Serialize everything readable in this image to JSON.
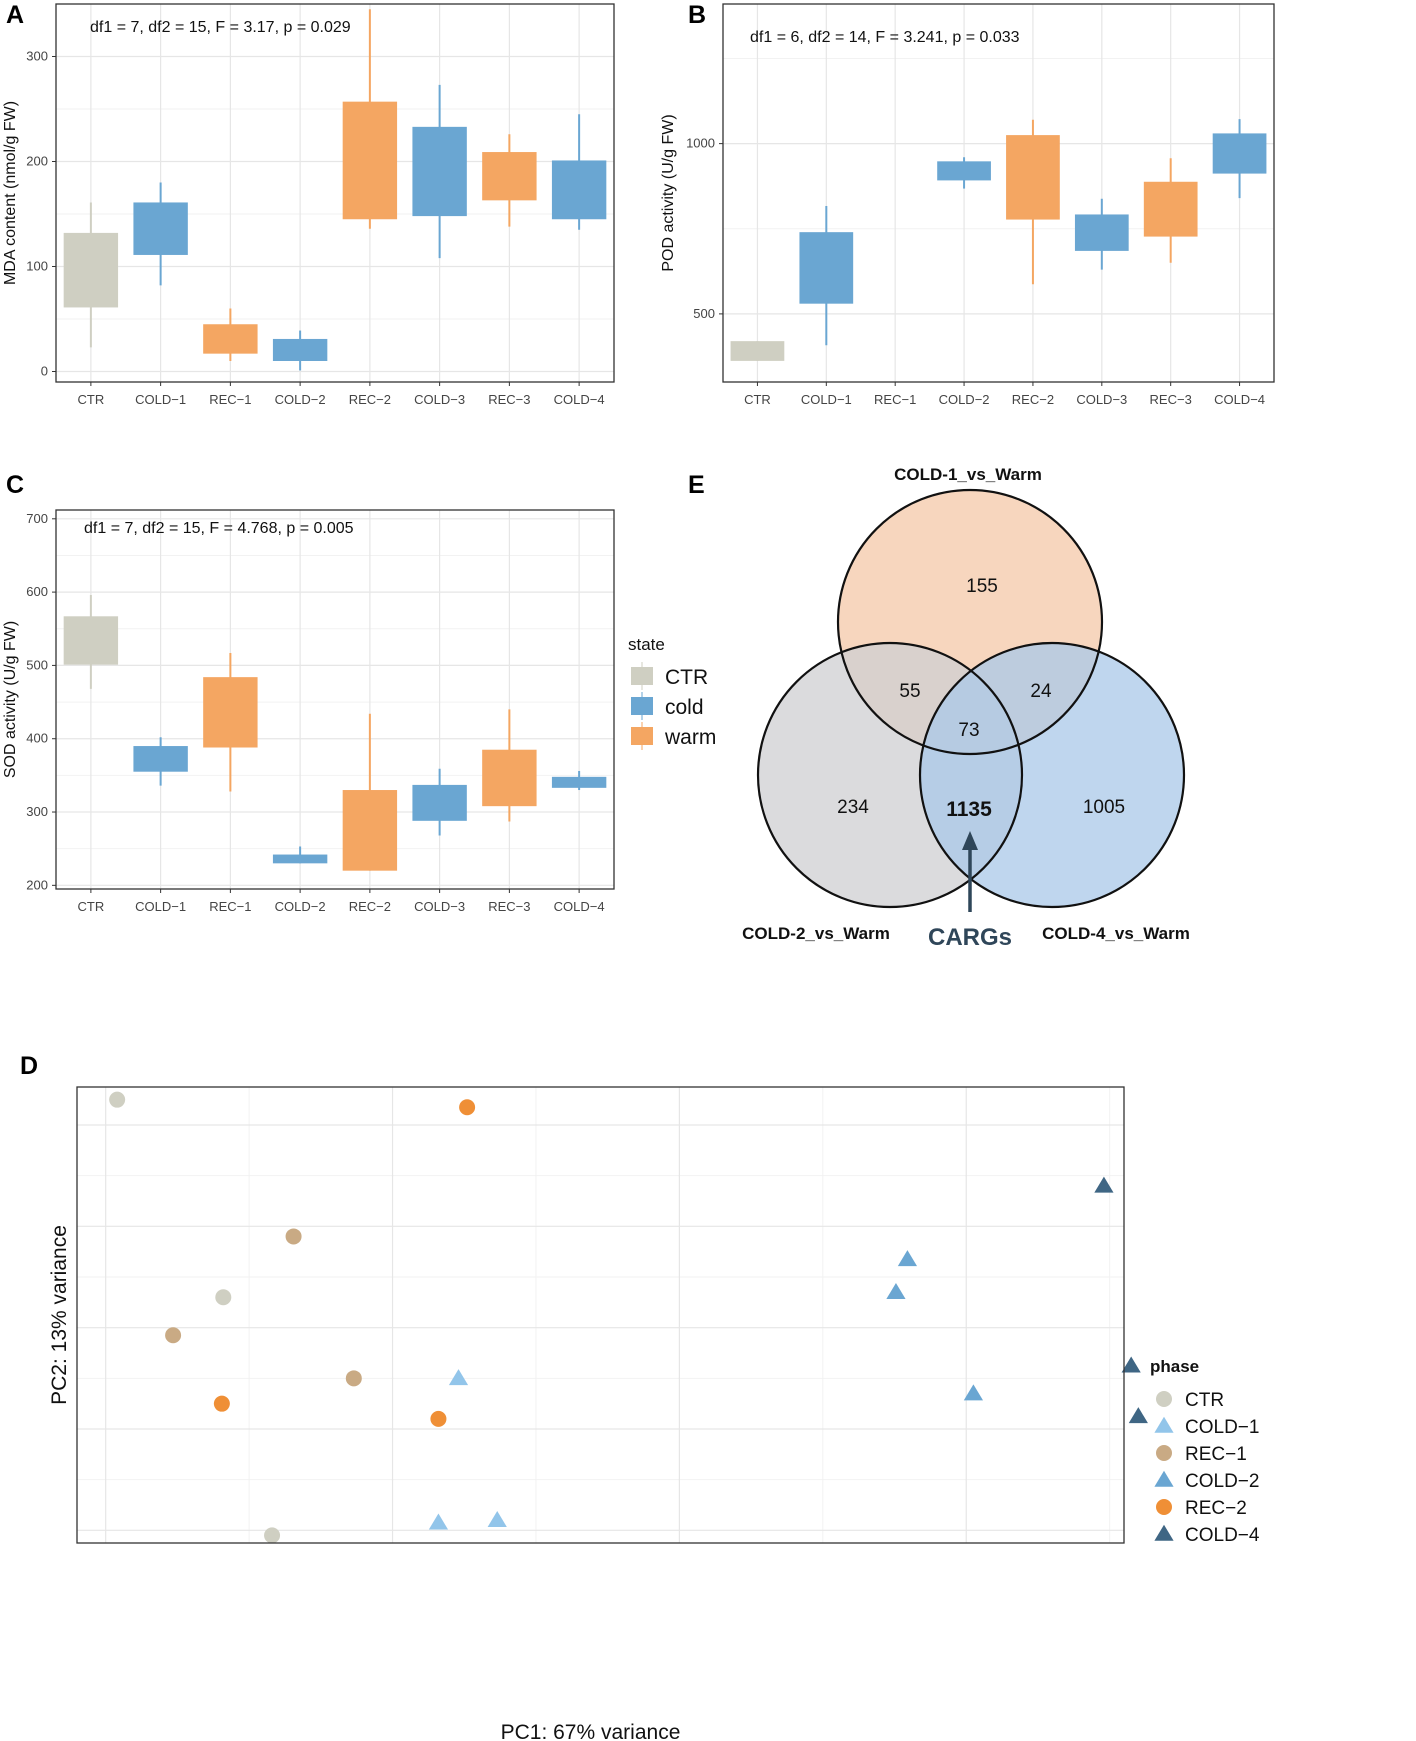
{
  "colors": {
    "CTR": "#cfcfc2",
    "cold": "#6aa6d2",
    "warm": "#f4a662",
    "CTR_pt": "#cfcfc2",
    "COLD1_pt": "#92c5ea",
    "REC1_pt": "#c9aa84",
    "COLD2_pt": "#6aa6d2",
    "REC2_pt": "#ef8f36",
    "COLD4_pt": "#3f6684",
    "venn_top": "#f6cfb3",
    "venn_left": "#cfcfd1",
    "venn_right": "#a9c8e8",
    "arrow": "#2f4659"
  },
  "chart_data": [
    {
      "panel": "A",
      "type": "box",
      "annotation": "df1 = 7, df2 = 15, F = 3.17, p = 0.029",
      "ylabel": "MDA content (nmol/g FW)",
      "ylim": [
        -10,
        350
      ],
      "yticks": [
        0,
        100,
        200,
        300
      ],
      "categories": [
        "CTR",
        "COLD−1",
        "REC−1",
        "COLD−2",
        "REC−2",
        "COLD−3",
        "REC−3",
        "COLD−4"
      ],
      "state": [
        "CTR",
        "cold",
        "warm",
        "cold",
        "warm",
        "cold",
        "warm",
        "cold"
      ],
      "boxes": [
        {
          "min": 23,
          "q1": 61,
          "q3": 132,
          "max": 161
        },
        {
          "min": 82,
          "q1": 111,
          "q3": 161,
          "max": 180
        },
        {
          "min": 10,
          "q1": 17,
          "q3": 45,
          "max": 60
        },
        {
          "min": 1,
          "q1": 10,
          "q3": 31,
          "max": 39
        },
        {
          "min": 136,
          "q1": 145,
          "q3": 257,
          "max": 345
        },
        {
          "min": 108,
          "q1": 148,
          "q3": 233,
          "max": 273
        },
        {
          "min": 138,
          "q1": 163,
          "q3": 209,
          "max": 226
        },
        {
          "min": 135,
          "q1": 145,
          "q3": 201,
          "max": 245
        }
      ]
    },
    {
      "panel": "B",
      "type": "box",
      "annotation": "df1 = 6, df2 = 14, F = 3.241, p = 0.033",
      "ylabel": "POD activity (U/g FW)",
      "ylim": [
        300,
        1410
      ],
      "yticks": [
        500,
        1000
      ],
      "categories": [
        "CTR",
        "COLD−1",
        "REC−1",
        "COLD−2",
        "REC−2",
        "COLD−3",
        "REC−3",
        "COLD−4"
      ],
      "state": [
        "CTR",
        "cold",
        "warm",
        "cold",
        "warm",
        "cold",
        "warm",
        "cold"
      ],
      "boxes": [
        {
          "min": 362,
          "q1": 362,
          "q3": 420,
          "max": 420
        },
        {
          "min": 408,
          "q1": 530,
          "q3": 740,
          "max": 817
        },
        null,
        {
          "min": 868,
          "q1": 892,
          "q3": 948,
          "max": 960
        },
        {
          "min": 587,
          "q1": 777,
          "q3": 1025,
          "max": 1070
        },
        {
          "min": 630,
          "q1": 685,
          "q3": 792,
          "max": 838
        },
        {
          "min": 650,
          "q1": 727,
          "q3": 888,
          "max": 957
        },
        {
          "min": 840,
          "q1": 912,
          "q3": 1030,
          "max": 1072
        }
      ]
    },
    {
      "panel": "C",
      "type": "box",
      "annotation": "df1 = 7, df2 = 15, F = 4.768, p = 0.005",
      "ylabel": "SOD activity (U/g FW)",
      "ylim": [
        195,
        712
      ],
      "yticks": [
        200,
        300,
        400,
        500,
        600,
        700
      ],
      "categories": [
        "CTR",
        "COLD−1",
        "REC−1",
        "COLD−2",
        "REC−2",
        "COLD−3",
        "REC−3",
        "COLD−4"
      ],
      "state": [
        "CTR",
        "cold",
        "warm",
        "cold",
        "warm",
        "cold",
        "warm",
        "cold"
      ],
      "boxes": [
        {
          "min": 468,
          "q1": 501,
          "q3": 567,
          "max": 596
        },
        {
          "min": 336,
          "q1": 355,
          "q3": 390,
          "max": 402
        },
        {
          "min": 328,
          "q1": 388,
          "q3": 484,
          "max": 517
        },
        {
          "min": 230,
          "q1": 230,
          "q3": 242,
          "max": 253
        },
        {
          "min": 220,
          "q1": 220,
          "q3": 330,
          "max": 434
        },
        {
          "min": 268,
          "q1": 288,
          "q3": 337,
          "max": 359
        },
        {
          "min": 287,
          "q1": 308,
          "q3": 385,
          "max": 440
        },
        {
          "min": 330,
          "q1": 333,
          "q3": 348,
          "max": 356
        }
      ]
    },
    {
      "panel": "D",
      "type": "scatter",
      "xlabel": "PC1: 67% variance",
      "ylabel": "PC2: 13% variance",
      "xlim": [
        -32,
        41
      ],
      "ylim": [
        -10.5,
        7.5
      ],
      "xgrid_major": [
        -30,
        -10,
        10,
        30
      ],
      "xgrid_minor": [
        -20,
        0,
        20,
        40
      ],
      "ygrid_major": [
        -10,
        -6,
        -2,
        2,
        6
      ],
      "ygrid_minor": [
        -8,
        -4,
        0,
        4
      ],
      "legend_title": "phase",
      "phases": [
        "CTR",
        "COLD−1",
        "REC−1",
        "COLD−2",
        "REC−2",
        "COLD−4"
      ],
      "shapes": [
        "circle",
        "triangle",
        "circle",
        "triangle",
        "circle",
        "triangle"
      ],
      "points": [
        {
          "phase": 0,
          "x": -29.2,
          "y": 7.0
        },
        {
          "phase": 0,
          "x": -21.8,
          "y": -0.8
        },
        {
          "phase": 0,
          "x": -18.4,
          "y": -10.2
        },
        {
          "phase": 2,
          "x": -25.3,
          "y": -2.3
        },
        {
          "phase": 2,
          "x": -16.9,
          "y": 1.6
        },
        {
          "phase": 2,
          "x": -12.7,
          "y": -4.0
        },
        {
          "phase": 4,
          "x": -4.8,
          "y": 6.7
        },
        {
          "phase": 4,
          "x": -21.9,
          "y": -5.0
        },
        {
          "phase": 4,
          "x": -6.8,
          "y": -5.6
        },
        {
          "phase": 1,
          "x": -5.4,
          "y": -4.0
        },
        {
          "phase": 1,
          "x": -6.8,
          "y": -9.7
        },
        {
          "phase": 1,
          "x": -2.7,
          "y": -9.6
        },
        {
          "phase": 3,
          "x": 25.9,
          "y": 0.7
        },
        {
          "phase": 3,
          "x": 25.1,
          "y": -0.6
        },
        {
          "phase": 3,
          "x": 30.5,
          "y": -4.6
        },
        {
          "phase": 5,
          "x": 39.6,
          "y": 3.6
        },
        {
          "phase": 5,
          "x": 41.5,
          "y": -3.5
        },
        {
          "phase": 5,
          "x": 42.0,
          "y": -5.5
        }
      ]
    },
    {
      "panel": "E",
      "type": "venn",
      "sets": [
        "COLD-1_vs_Warm",
        "COLD-2_vs_Warm",
        "COLD-4_vs_Warm"
      ],
      "regions": {
        "only_cold1": 155,
        "only_cold2": 234,
        "only_cold4": 1005,
        "cold1_cold2": 55,
        "cold1_cold4": 24,
        "all": 73,
        "cold2_cold4": 1135
      },
      "highlight_label": "CARGs"
    }
  ],
  "panel_labels": [
    "A",
    "B",
    "C",
    "D",
    "E"
  ],
  "legend_state": {
    "title": "state",
    "items": [
      "CTR",
      "cold",
      "warm"
    ]
  }
}
